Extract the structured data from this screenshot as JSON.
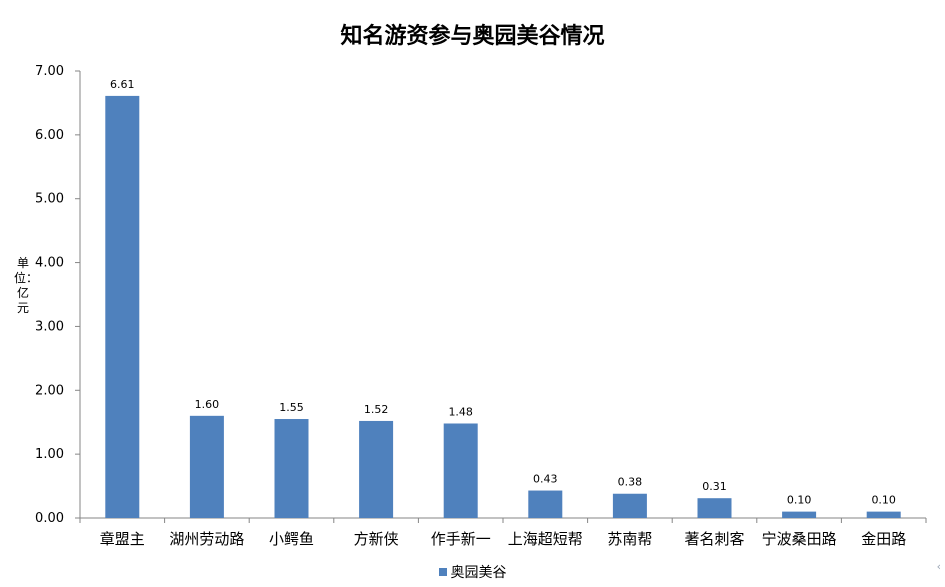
{
  "chart_data": {
    "type": "bar",
    "title": "知名游资参与奥园美谷情况",
    "ylabel": "单位：亿元",
    "xlabel": "",
    "categories": [
      "章盟主",
      "湖州劳动路",
      "小鳄鱼",
      "方新侠",
      "作手新一",
      "上海超短帮",
      "苏南帮",
      "著名刺客",
      "宁波桑田路",
      "金田路"
    ],
    "series": [
      {
        "name": "奥园美谷",
        "values": [
          6.61,
          1.6,
          1.55,
          1.52,
          1.48,
          0.43,
          0.38,
          0.31,
          0.1,
          0.1
        ],
        "value_labels": [
          "6.61",
          "1.60",
          "1.55",
          "1.52",
          "1.48",
          "0.43",
          "0.38",
          "0.31",
          "0.10",
          "0.10"
        ],
        "color": "#4f81bd"
      }
    ],
    "ylim": [
      0,
      7
    ],
    "yticks": [
      "0.00",
      "1.00",
      "2.00",
      "3.00",
      "4.00",
      "5.00",
      "6.00",
      "7.00"
    ],
    "grid": false,
    "legend_position": "bottom"
  }
}
